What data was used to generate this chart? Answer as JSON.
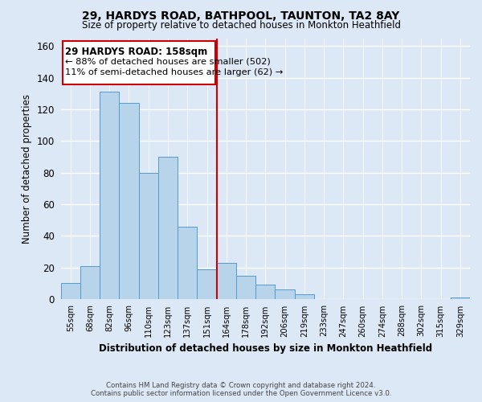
{
  "title": "29, HARDYS ROAD, BATHPOOL, TAUNTON, TA2 8AY",
  "subtitle": "Size of property relative to detached houses in Monkton Heathfield",
  "xlabel": "Distribution of detached houses by size in Monkton Heathfield",
  "ylabel": "Number of detached properties",
  "bin_labels": [
    "55sqm",
    "68sqm",
    "82sqm",
    "96sqm",
    "110sqm",
    "123sqm",
    "137sqm",
    "151sqm",
    "164sqm",
    "178sqm",
    "192sqm",
    "206sqm",
    "219sqm",
    "233sqm",
    "247sqm",
    "260sqm",
    "274sqm",
    "288sqm",
    "302sqm",
    "315sqm",
    "329sqm"
  ],
  "bar_heights": [
    10,
    21,
    131,
    124,
    80,
    90,
    46,
    19,
    23,
    15,
    9,
    6,
    3,
    0,
    0,
    0,
    0,
    0,
    0,
    0,
    1
  ],
  "bar_color": "#b8d4ea",
  "bar_edge_color": "#5599cc",
  "vline_color": "#cc0000",
  "annotation_title": "29 HARDYS ROAD: 158sqm",
  "annotation_line1": "← 88% of detached houses are smaller (502)",
  "annotation_line2": "11% of semi-detached houses are larger (62) →",
  "annotation_box_color": "#ffffff",
  "annotation_box_edge": "#cc0000",
  "ylim": [
    0,
    165
  ],
  "yticks": [
    0,
    20,
    40,
    60,
    80,
    100,
    120,
    140,
    160
  ],
  "footer1": "Contains HM Land Registry data © Crown copyright and database right 2024.",
  "footer2": "Contains public sector information licensed under the Open Government Licence v3.0.",
  "bg_color": "#dce8f5"
}
